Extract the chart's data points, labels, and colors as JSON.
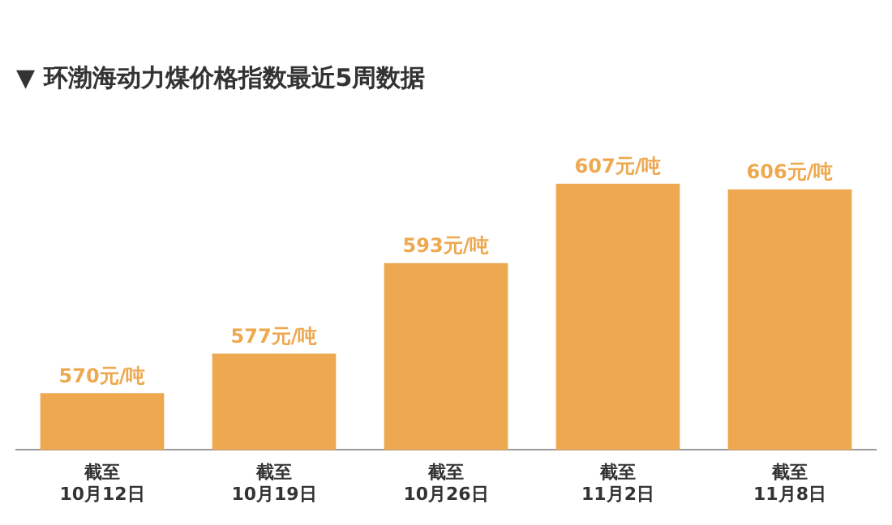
{
  "chart_data": {
    "type": "bar",
    "title": "▼ 环渤海动力煤价格指数最近5周数据",
    "categories": [
      "截至\n10月12日",
      "截至\n10月19日",
      "截至\n10月26日",
      "截至\n11月2日",
      "截至\n11月8日"
    ],
    "values": [
      570,
      577,
      593,
      607,
      606
    ],
    "value_labels": [
      "570元/吨",
      "577元/吨",
      "593元/吨",
      "607元/吨",
      "606元/吨"
    ],
    "color": "#eea84f",
    "grid": false,
    "legend": false
  }
}
